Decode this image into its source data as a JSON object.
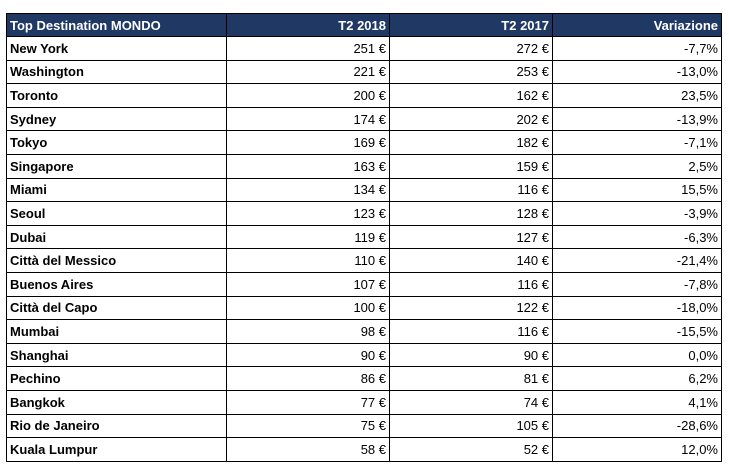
{
  "table": {
    "headers": {
      "destination": "Top Destination  MONDO",
      "q2_2018": "T2 2018",
      "q2_2017": "T2 2017",
      "variation": "Variazione"
    },
    "rows": [
      {
        "city": "New York",
        "q2_2018": "251 €",
        "q2_2017": "272 €",
        "variation": "-7,7%"
      },
      {
        "city": "Washington",
        "q2_2018": "221 €",
        "q2_2017": "253 €",
        "variation": "-13,0%"
      },
      {
        "city": "Toronto",
        "q2_2018": "200 €",
        "q2_2017": "162 €",
        "variation": "23,5%"
      },
      {
        "city": "Sydney",
        "q2_2018": "174 €",
        "q2_2017": "202 €",
        "variation": "-13,9%"
      },
      {
        "city": "Tokyo",
        "q2_2018": "169 €",
        "q2_2017": "182 €",
        "variation": "-7,1%"
      },
      {
        "city": "Singapore",
        "q2_2018": "163 €",
        "q2_2017": "159 €",
        "variation": "2,5%"
      },
      {
        "city": "Miami",
        "q2_2018": "134 €",
        "q2_2017": "116 €",
        "variation": "15,5%"
      },
      {
        "city": "Seoul",
        "q2_2018": "123 €",
        "q2_2017": "128 €",
        "variation": "-3,9%"
      },
      {
        "city": "Dubai",
        "q2_2018": "119 €",
        "q2_2017": "127 €",
        "variation": "-6,3%"
      },
      {
        "city": "Città del Messico",
        "q2_2018": "110 €",
        "q2_2017": "140 €",
        "variation": "-21,4%"
      },
      {
        "city": "Buenos Aires",
        "q2_2018": "107 €",
        "q2_2017": "116 €",
        "variation": "-7,8%"
      },
      {
        "city": "Città del Capo",
        "q2_2018": "100 €",
        "q2_2017": "122 €",
        "variation": "-18,0%"
      },
      {
        "city": "Mumbai",
        "q2_2018": "98 €",
        "q2_2017": "116 €",
        "variation": "-15,5%"
      },
      {
        "city": "Shanghai",
        "q2_2018": "90 €",
        "q2_2017": "90 €",
        "variation": "0,0%"
      },
      {
        "city": "Pechino",
        "q2_2018": "86 €",
        "q2_2017": "81 €",
        "variation": "6,2%"
      },
      {
        "city": "Bangkok",
        "q2_2018": "77 €",
        "q2_2017": "74 €",
        "variation": "4,1%"
      },
      {
        "city": "Rio de Janeiro",
        "q2_2018": "75 €",
        "q2_2017": "105 €",
        "variation": "-28,6%"
      },
      {
        "city": "Kuala Lumpur",
        "q2_2018": "58 €",
        "q2_2017": "52 €",
        "variation": "12,0%"
      }
    ]
  },
  "colors": {
    "header_background": "#1f3864",
    "header_text": "#ffffff",
    "border": "#000000"
  }
}
